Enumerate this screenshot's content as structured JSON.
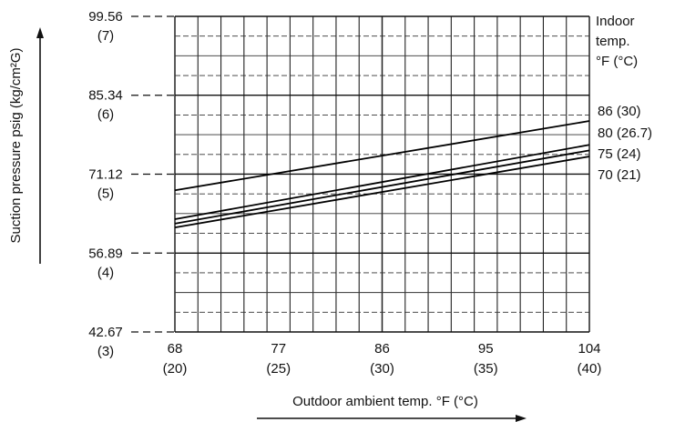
{
  "chart_data": {
    "type": "line",
    "xlabel": "Outdoor ambient temp. °F (°C)",
    "ylabel": "Suction pressure psig (kg/cm²G)",
    "legend_title_lines": [
      "Indoor",
      "temp.",
      "°F (°C)"
    ],
    "xlim": [
      68,
      104
    ],
    "ylim": [
      42.67,
      99.56
    ],
    "x_ticks": [
      {
        "value": 68,
        "line1": "68",
        "line2": "(20)"
      },
      {
        "value": 77,
        "line1": "77",
        "line2": "(25)"
      },
      {
        "value": 86,
        "line1": "86",
        "line2": "(30)"
      },
      {
        "value": 95,
        "line1": "95",
        "line2": "(35)"
      },
      {
        "value": 104,
        "line1": "104",
        "line2": "(40)"
      }
    ],
    "y_ticks": [
      {
        "value": 99.56,
        "line1": "99.56",
        "line2": "(7)"
      },
      {
        "value": 85.34,
        "line1": "85.34",
        "line2": "(6)"
      },
      {
        "value": 71.12,
        "line1": "71.12",
        "line2": "(5)"
      },
      {
        "value": 56.89,
        "line1": "56.89",
        "line2": "(4)"
      },
      {
        "value": 42.67,
        "line1": "42.67",
        "line2": "(3)"
      }
    ],
    "x_minor_step": 2,
    "y_minor_step": 3.556,
    "series": [
      {
        "name": "86 (30)",
        "x": [
          68,
          104
        ],
        "y": [
          68.2,
          80.7
        ]
      },
      {
        "name": "80 (26.7)",
        "x": [
          68,
          104
        ],
        "y": [
          63.0,
          76.4
        ]
      },
      {
        "name": "75 (24)",
        "x": [
          68,
          104
        ],
        "y": [
          62.2,
          75.4
        ]
      },
      {
        "name": "70 (21)",
        "x": [
          68,
          104
        ],
        "y": [
          61.5,
          74.3
        ]
      }
    ]
  }
}
